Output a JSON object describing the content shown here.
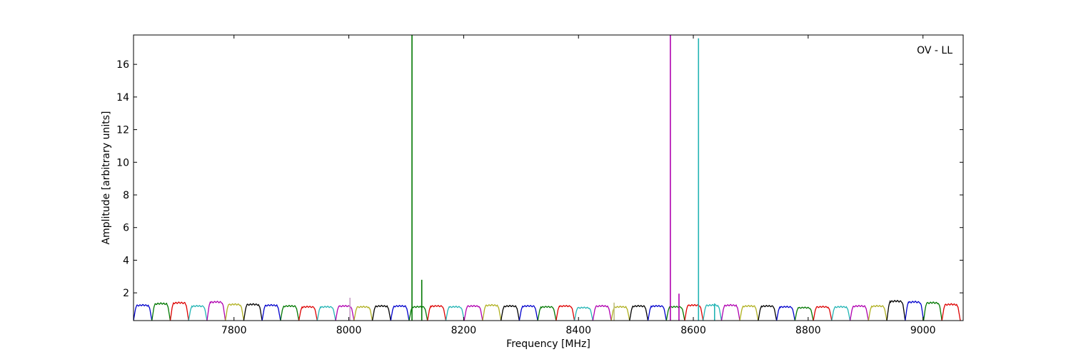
{
  "chart_data": {
    "type": "line",
    "title": "",
    "annotation": "OV - LL",
    "xlabel": "Frequency [MHz]",
    "ylabel": "Amplitude [arbitrary units]",
    "xlim": [
      7625,
      9070
    ],
    "ylim": [
      0.3,
      17.8
    ],
    "xticks": [
      7800,
      8000,
      8200,
      8400,
      8600,
      8800,
      9000
    ],
    "yticks": [
      2,
      4,
      6,
      8,
      10,
      12,
      14,
      16
    ],
    "grid": false,
    "band_start_mhz": 7625,
    "band_width_mhz": 32,
    "band_colors": [
      "#0000cc",
      "#007700",
      "#dd0000",
      "#22b4b4",
      "#b000b0",
      "#b0b020",
      "#000000"
    ],
    "band_peak_amplitudes": [
      1.25,
      1.35,
      1.4,
      1.2,
      1.45,
      1.3,
      1.3,
      1.25,
      1.2,
      1.15,
      1.15,
      1.2,
      1.15,
      1.2,
      1.2,
      1.15,
      1.2,
      1.15,
      1.2,
      1.25,
      1.2,
      1.2,
      1.15,
      1.2,
      1.1,
      1.2,
      1.15,
      1.2,
      1.2,
      1.15,
      1.25,
      1.25,
      1.25,
      1.2,
      1.2,
      1.15,
      1.1,
      1.15,
      1.15,
      1.2,
      1.2,
      1.5,
      1.45,
      1.4,
      1.3
    ],
    "spikes": [
      {
        "x": 8110,
        "y": 17.8,
        "color": "#007700"
      },
      {
        "x": 8127,
        "y": 2.8,
        "color": "#007700"
      },
      {
        "x": 8002,
        "y": 1.7,
        "color": "#c8a0c8"
      },
      {
        "x": 8462,
        "y": 1.4,
        "color": "#c0c080"
      },
      {
        "x": 8560,
        "y": 17.8,
        "color": "#b000b0"
      },
      {
        "x": 8575,
        "y": 1.95,
        "color": "#b000b0"
      },
      {
        "x": 8609,
        "y": 17.6,
        "color": "#22b4b4"
      },
      {
        "x": 8637,
        "y": 1.35,
        "color": "#22b4b4"
      }
    ]
  }
}
